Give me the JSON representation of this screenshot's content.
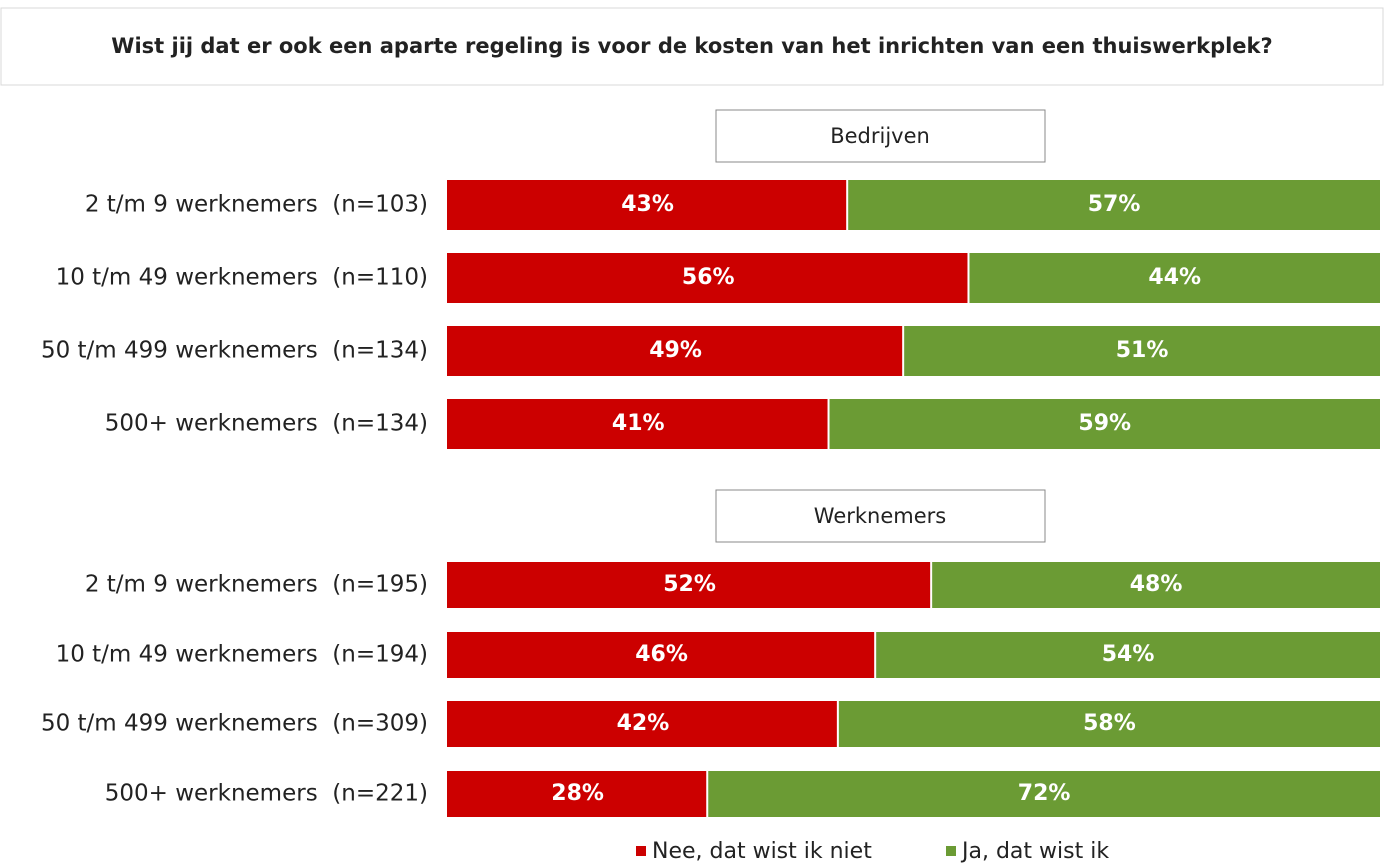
{
  "header": {
    "title": "Wist jij dat er ook een aparte regeling is voor de kosten van het inrichten van een thuiswerkplek?"
  },
  "chart_data": {
    "type": "bar",
    "stacked": true,
    "orientation": "horizontal",
    "groups": [
      "Bedrijven",
      "Werknemers"
    ],
    "categories": [
      [
        "2 t/m 9 werknemers  (n=103)",
        "10 t/m 49 werknemers  (n=110)",
        "50 t/m 499 werknemers  (n=134)",
        "500+ werknemers  (n=134)"
      ],
      [
        "2 t/m 9 werknemers  (n=195)",
        "10 t/m 49 werknemers  (n=194)",
        "50 t/m 499 werknemers  (n=309)",
        "500+ werknemers  (n=221)"
      ]
    ],
    "xlim": [
      0,
      100
    ],
    "series": [
      {
        "name": "Nee, dat wist ik niet",
        "color": "#cc0000",
        "values": [
          [
            43,
            56,
            49,
            41
          ],
          [
            52,
            46,
            42,
            28
          ]
        ],
        "value_labels": [
          [
            "43%",
            "56%",
            "49%",
            "41%"
          ],
          [
            "52%",
            "46%",
            "42%",
            "28%"
          ]
        ]
      },
      {
        "name": "Ja, dat wist ik",
        "color": "#6b9b34",
        "values": [
          [
            57,
            44,
            51,
            59
          ],
          [
            48,
            54,
            58,
            72
          ]
        ],
        "value_labels": [
          [
            "57%",
            "44%",
            "51%",
            "59%"
          ],
          [
            "48%",
            "54%",
            "58%",
            "72%"
          ]
        ]
      }
    ]
  }
}
